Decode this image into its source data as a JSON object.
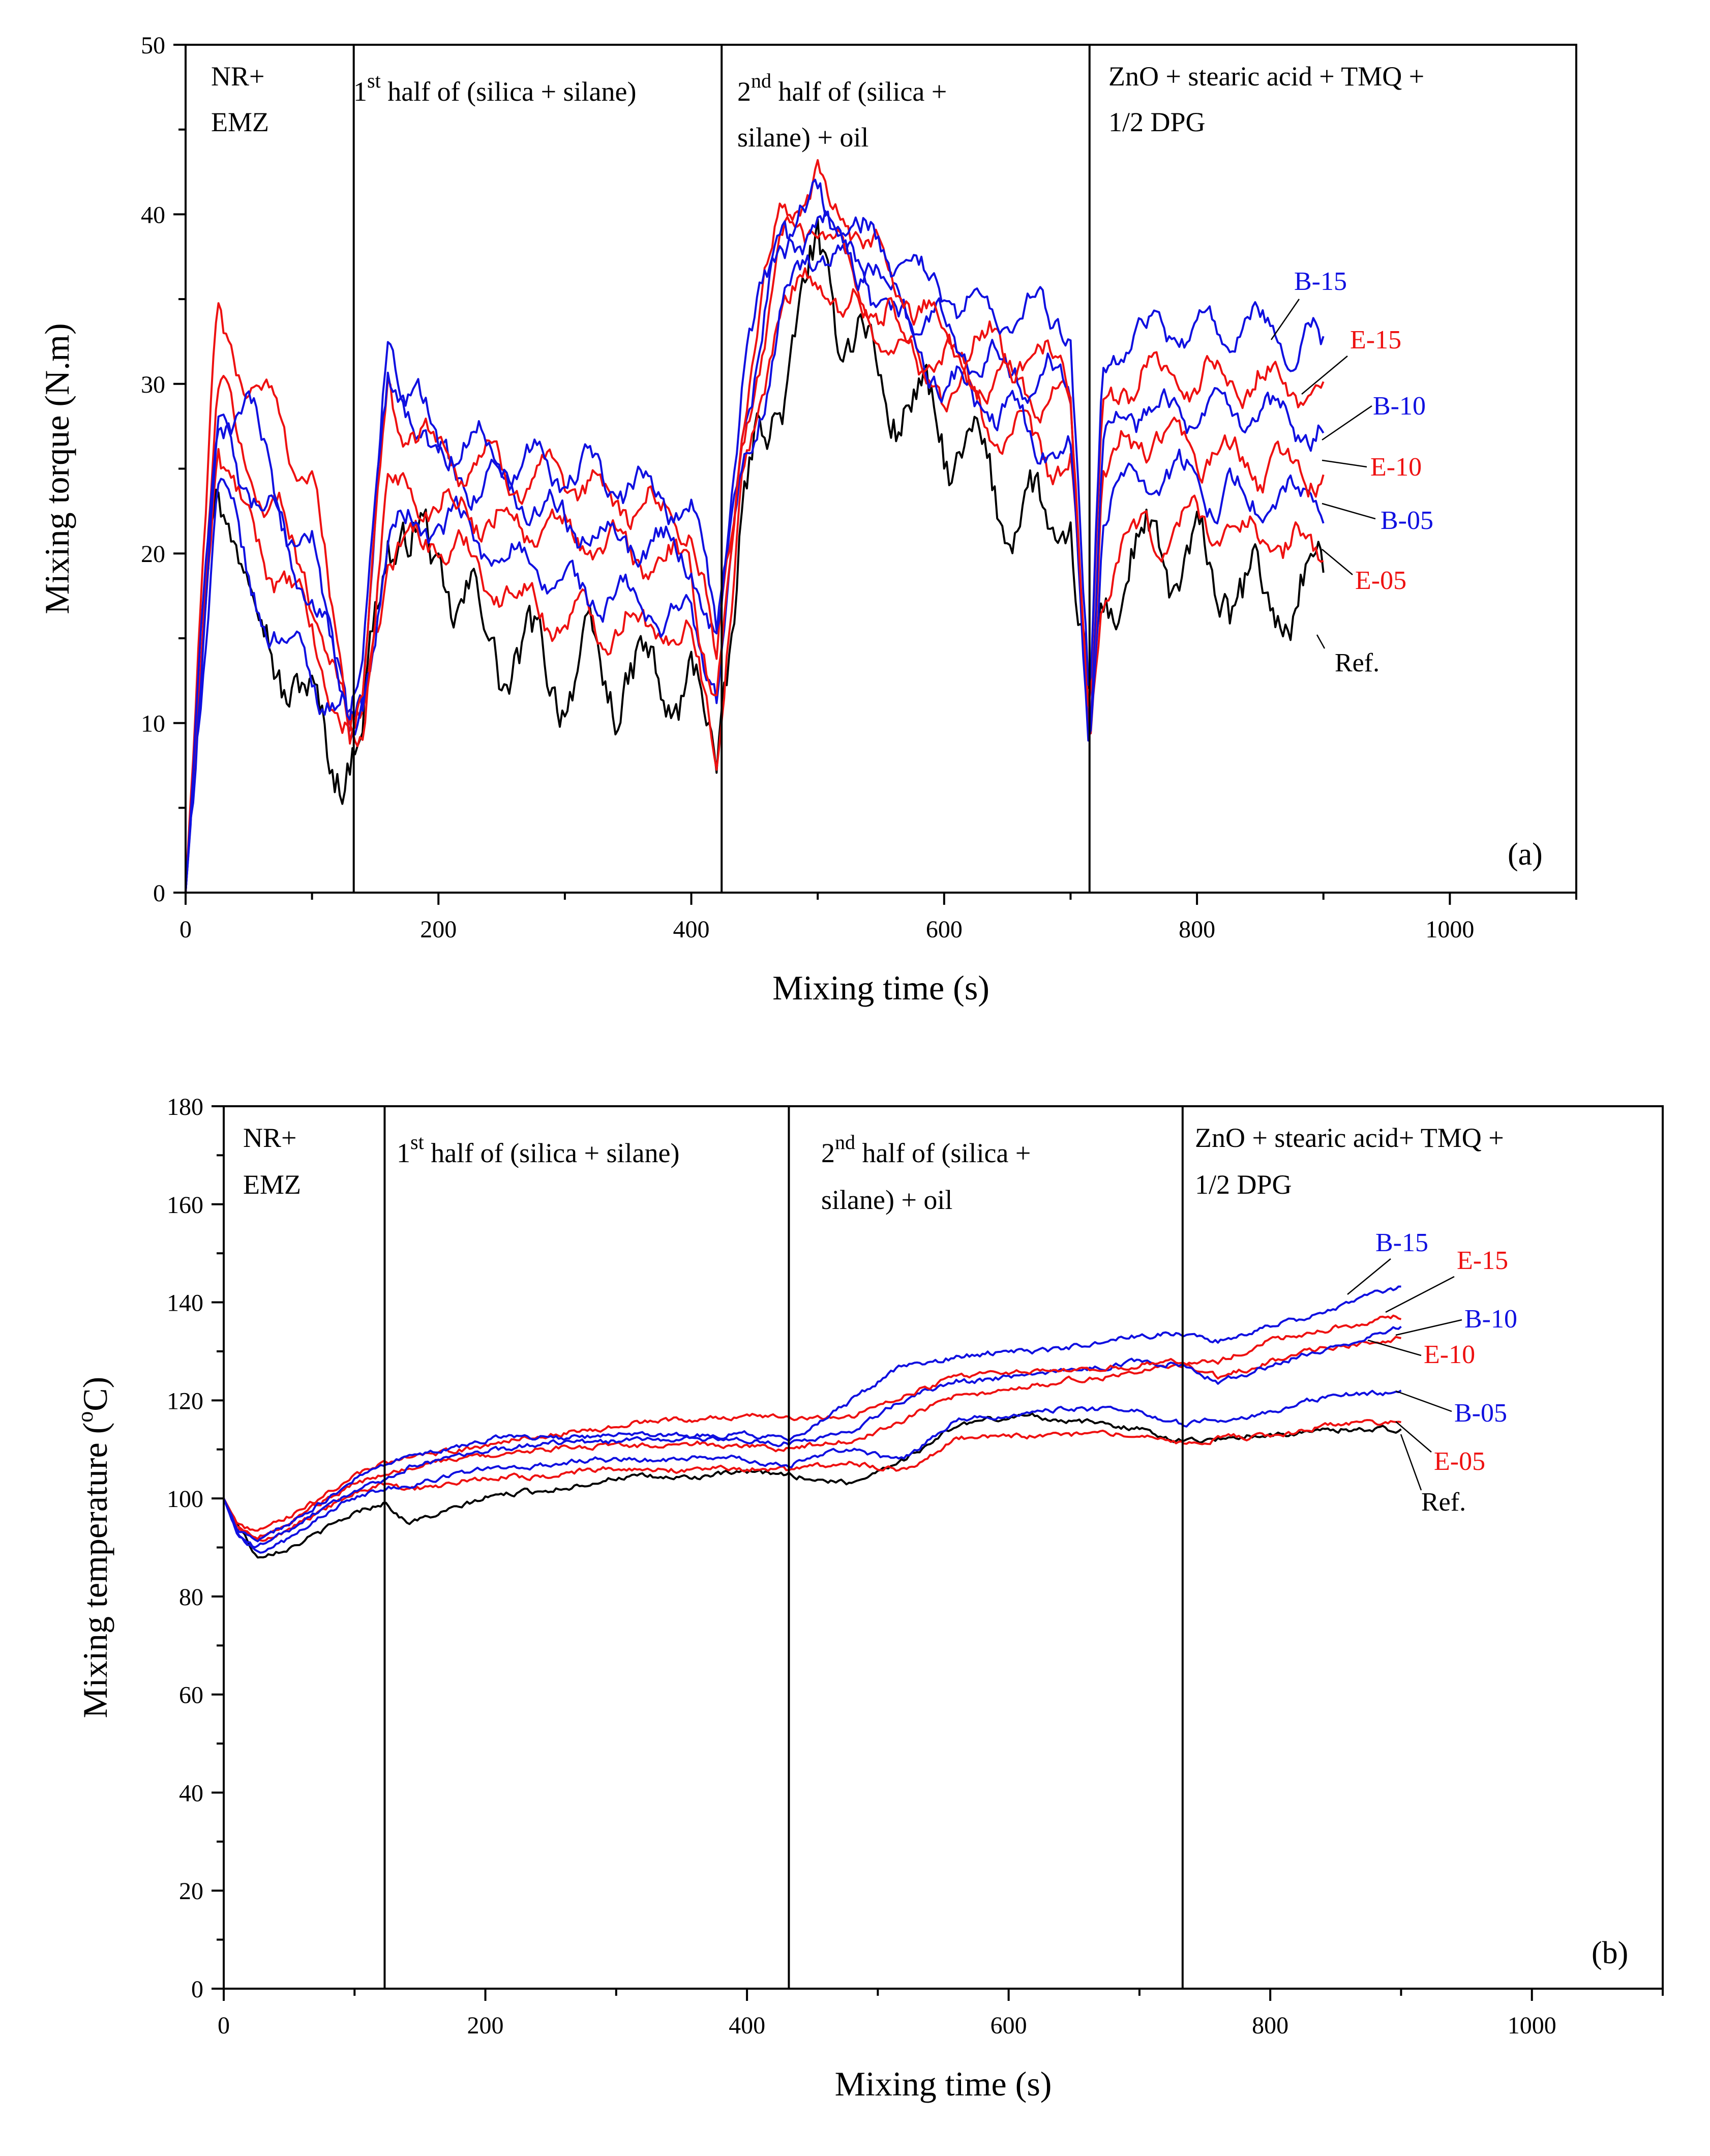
{
  "colors": {
    "blue": "#1010e0",
    "red": "#ee1111",
    "black": "#000000"
  },
  "chart_data": [
    {
      "id": "a",
      "type": "line",
      "panel_label": "(a)",
      "xlabel": "Mixing time (s)",
      "ylabel": "Mixing torque (N.m)",
      "xlim": [
        0,
        1100
      ],
      "ylim": [
        0,
        50
      ],
      "x_ticks": [
        "0",
        "200",
        "400",
        "600",
        "800",
        "1000"
      ],
      "y_ticks": [
        "0",
        "10",
        "20",
        "30",
        "40",
        "50"
      ],
      "x_tick_values": [
        0,
        200,
        400,
        600,
        800,
        1000
      ],
      "y_tick_values": [
        0,
        10,
        20,
        30,
        40,
        50
      ],
      "dividers": [
        133,
        424,
        715
      ],
      "phase_labels": [
        {
          "lines": [
            "NR+",
            "EMZ"
          ]
        },
        {
          "lines": [
            "1st half of (silica + silane)"
          ]
        },
        {
          "lines": [
            "2nd half of (silica +",
            "silane) + oil"
          ]
        },
        {
          "lines": [
            "ZnO + stearic acid + TMQ +",
            "1/2 DPG"
          ]
        }
      ],
      "series": [
        {
          "name": "Ref.",
          "color": "#000000",
          "x": [
            0,
            25,
            50,
            75,
            100,
            130,
            140,
            160,
            200,
            250,
            300,
            350,
            400,
            420,
            440,
            470,
            500,
            550,
            600,
            650,
            700,
            715,
            725,
            740,
            760,
            800,
            850,
            900
          ],
          "y": [
            0,
            26,
            18,
            14,
            10,
            8,
            9,
            22,
            19,
            14,
            13,
            12.5,
            12,
            8,
            22,
            30,
            37,
            30,
            27,
            23,
            21,
            9,
            17,
            19,
            20,
            19,
            17,
            18
          ]
        },
        {
          "name": "E-05",
          "color": "#ee1111",
          "x": [
            0,
            25,
            50,
            75,
            100,
            130,
            140,
            160,
            200,
            250,
            300,
            350,
            400,
            420,
            440,
            470,
            500,
            550,
            600,
            650,
            700,
            715,
            725,
            740,
            760,
            800,
            850,
            900
          ],
          "y": [
            0,
            27,
            21,
            19,
            15,
            9,
            10,
            20,
            21,
            18,
            16,
            16,
            15,
            9,
            23,
            35,
            36,
            33,
            30,
            27,
            25,
            8.5,
            18,
            20,
            21,
            22,
            21,
            20
          ]
        },
        {
          "name": "B-05",
          "color": "#1010e0",
          "x": [
            0,
            25,
            50,
            75,
            100,
            130,
            140,
            160,
            200,
            250,
            300,
            350,
            400,
            420,
            440,
            470,
            500,
            550,
            600,
            650,
            700,
            715,
            725,
            740,
            760,
            800,
            850,
            900
          ],
          "y": [
            0,
            25,
            18,
            15,
            13,
            10,
            11,
            21,
            22,
            20,
            18,
            17,
            16,
            12,
            24,
            34,
            38,
            35,
            30,
            28,
            26,
            9,
            22,
            24,
            25,
            24,
            23,
            23
          ]
        },
        {
          "name": "E-10",
          "color": "#ee1111",
          "x": [
            0,
            25,
            50,
            75,
            100,
            130,
            140,
            160,
            200,
            250,
            300,
            350,
            400,
            420,
            440,
            470,
            500,
            550,
            600,
            650,
            700,
            715,
            725,
            740,
            760,
            800,
            850,
            900
          ],
          "y": [
            0,
            30,
            25,
            22,
            18,
            9,
            10,
            24,
            23,
            22,
            21,
            20,
            19,
            11,
            26,
            38,
            40,
            34,
            31,
            30,
            29,
            9,
            24,
            26,
            27,
            26,
            25,
            25
          ]
        },
        {
          "name": "B-10",
          "color": "#1010e0",
          "x": [
            0,
            25,
            50,
            75,
            100,
            130,
            140,
            160,
            200,
            250,
            300,
            350,
            400,
            420,
            440,
            470,
            500,
            550,
            600,
            650,
            700,
            715,
            725,
            740,
            760,
            800,
            850,
            900
          ],
          "y": [
            0,
            27,
            24,
            21,
            18,
            10,
            12,
            32,
            25,
            24,
            22,
            21,
            20,
            14,
            27,
            38,
            40,
            36,
            33,
            31,
            30,
            9,
            26,
            28,
            29,
            28,
            28,
            27
          ]
        },
        {
          "name": "E-15",
          "color": "#ee1111",
          "x": [
            0,
            25,
            50,
            75,
            100,
            130,
            140,
            160,
            200,
            250,
            300,
            350,
            400,
            420,
            440,
            470,
            500,
            550,
            600,
            650,
            700,
            715,
            725,
            740,
            760,
            800,
            850,
            900
          ],
          "y": [
            0,
            34,
            30,
            28,
            24,
            10,
            12,
            29,
            26,
            25,
            24,
            23,
            22,
            13,
            28,
            40,
            41.5,
            37,
            33,
            32,
            31,
            9,
            28,
            30,
            31,
            30,
            30,
            29.5
          ]
        },
        {
          "name": "B-15",
          "color": "#1010e0",
          "x": [
            0,
            25,
            50,
            75,
            100,
            130,
            140,
            160,
            200,
            250,
            300,
            350,
            400,
            420,
            440,
            470,
            500,
            550,
            600,
            650,
            700,
            715,
            725,
            740,
            760,
            800,
            850,
            900
          ],
          "y": [
            0,
            28,
            29,
            22,
            20,
            11,
            13,
            31,
            27,
            26,
            25,
            24,
            23,
            15,
            30,
            39,
            40.5,
            38,
            35,
            34,
            34,
            10,
            31,
            33,
            33,
            33,
            33,
            32
          ]
        }
      ]
    },
    {
      "id": "b",
      "type": "line",
      "panel_label": "(b)",
      "xlabel": "Mixing time (s)",
      "ylabel": "Mixing temperature (oC)",
      "xlim": [
        0,
        1100
      ],
      "ylim": [
        0,
        180
      ],
      "x_ticks": [
        "0",
        "200",
        "400",
        "600",
        "800",
        "1000"
      ],
      "y_ticks": [
        "0",
        "20",
        "40",
        "60",
        "80",
        "100",
        "120",
        "140",
        "160",
        "180"
      ],
      "x_tick_values": [
        0,
        200,
        400,
        600,
        800,
        1000
      ],
      "y_tick_values": [
        0,
        20,
        40,
        60,
        80,
        100,
        120,
        140,
        160,
        180
      ],
      "dividers": [
        123,
        432,
        733
      ],
      "phase_labels": [
        {
          "lines": [
            "NR+",
            "EMZ"
          ]
        },
        {
          "lines": [
            "1st half of (silica + silane)"
          ]
        },
        {
          "lines": [
            "2nd half of (silica +",
            "silane) + oil"
          ]
        },
        {
          "lines": [
            "ZnO + stearic acid+ TMQ +",
            "1/2 DPG"
          ]
        }
      ],
      "series": [
        {
          "name": "Ref.",
          "color": "#000000",
          "x": [
            0,
            10,
            25,
            50,
            100,
            123,
            140,
            200,
            300,
            400,
            432,
            480,
            520,
            560,
            620,
            700,
            733,
            760,
            800,
            850,
            900
          ],
          "y": [
            100,
            95,
            88,
            90,
            97,
            99,
            95,
            100,
            104,
            105,
            105,
            103,
            108,
            115,
            117,
            114,
            112,
            112,
            113,
            114,
            114
          ]
        },
        {
          "name": "E-05",
          "color": "#ee1111",
          "x": [
            0,
            10,
            25,
            50,
            100,
            123,
            140,
            200,
            300,
            400,
            432,
            480,
            520,
            560,
            620,
            700,
            733,
            760,
            800,
            850,
            900
          ],
          "y": [
            100,
            94,
            91,
            94,
            101,
            103,
            102,
            104,
            106,
            106,
            106,
            107,
            106,
            112,
            113,
            113,
            111,
            112,
            113,
            115,
            116
          ]
        },
        {
          "name": "B-05",
          "color": "#1010e0",
          "x": [
            0,
            10,
            25,
            50,
            100,
            123,
            140,
            200,
            300,
            400,
            432,
            480,
            520,
            560,
            620,
            700,
            733,
            760,
            800,
            850,
            900
          ],
          "y": [
            100,
            93,
            89,
            92,
            100,
            102,
            103,
            106,
            108,
            108,
            107,
            110,
            108,
            116,
            118,
            118,
            115,
            116,
            118,
            121,
            122
          ]
        },
        {
          "name": "E-10",
          "color": "#ee1111",
          "x": [
            0,
            10,
            25,
            50,
            100,
            123,
            140,
            200,
            300,
            400,
            432,
            480,
            520,
            560,
            620,
            700,
            733,
            760,
            800,
            850,
            900
          ],
          "y": [
            100,
            94,
            92,
            95,
            103,
            105,
            106,
            109,
            111,
            111,
            110,
            112,
            116,
            121,
            123,
            126,
            127,
            125,
            128,
            131,
            133
          ]
        },
        {
          "name": "B-10",
          "color": "#1010e0",
          "x": [
            0,
            10,
            25,
            50,
            100,
            123,
            140,
            200,
            300,
            400,
            432,
            480,
            520,
            560,
            620,
            700,
            733,
            760,
            800,
            850,
            900
          ],
          "y": [
            100,
            93,
            90,
            93,
            102,
            104,
            106,
            110,
            112,
            112,
            111,
            114,
            120,
            124,
            125,
            128,
            127,
            124,
            127,
            131,
            135
          ]
        },
        {
          "name": "E-15",
          "color": "#ee1111",
          "x": [
            0,
            10,
            25,
            50,
            100,
            123,
            140,
            200,
            300,
            400,
            432,
            480,
            520,
            560,
            620,
            700,
            733,
            760,
            800,
            850,
            900
          ],
          "y": [
            100,
            95,
            93,
            96,
            105,
            107,
            108,
            111,
            115,
            117,
            116,
            117,
            121,
            125,
            126,
            127,
            128,
            128,
            132,
            135,
            137
          ]
        },
        {
          "name": "B-15",
          "color": "#1010e0",
          "x": [
            0,
            10,
            25,
            50,
            100,
            123,
            140,
            200,
            300,
            400,
            432,
            480,
            520,
            560,
            620,
            700,
            733,
            760,
            800,
            850,
            900
          ],
          "y": [
            100,
            94,
            91,
            95,
            104,
            107,
            108,
            112,
            113,
            113,
            112,
            120,
            127,
            129,
            130,
            133,
            134,
            132,
            135,
            139,
            143
          ]
        }
      ]
    }
  ]
}
